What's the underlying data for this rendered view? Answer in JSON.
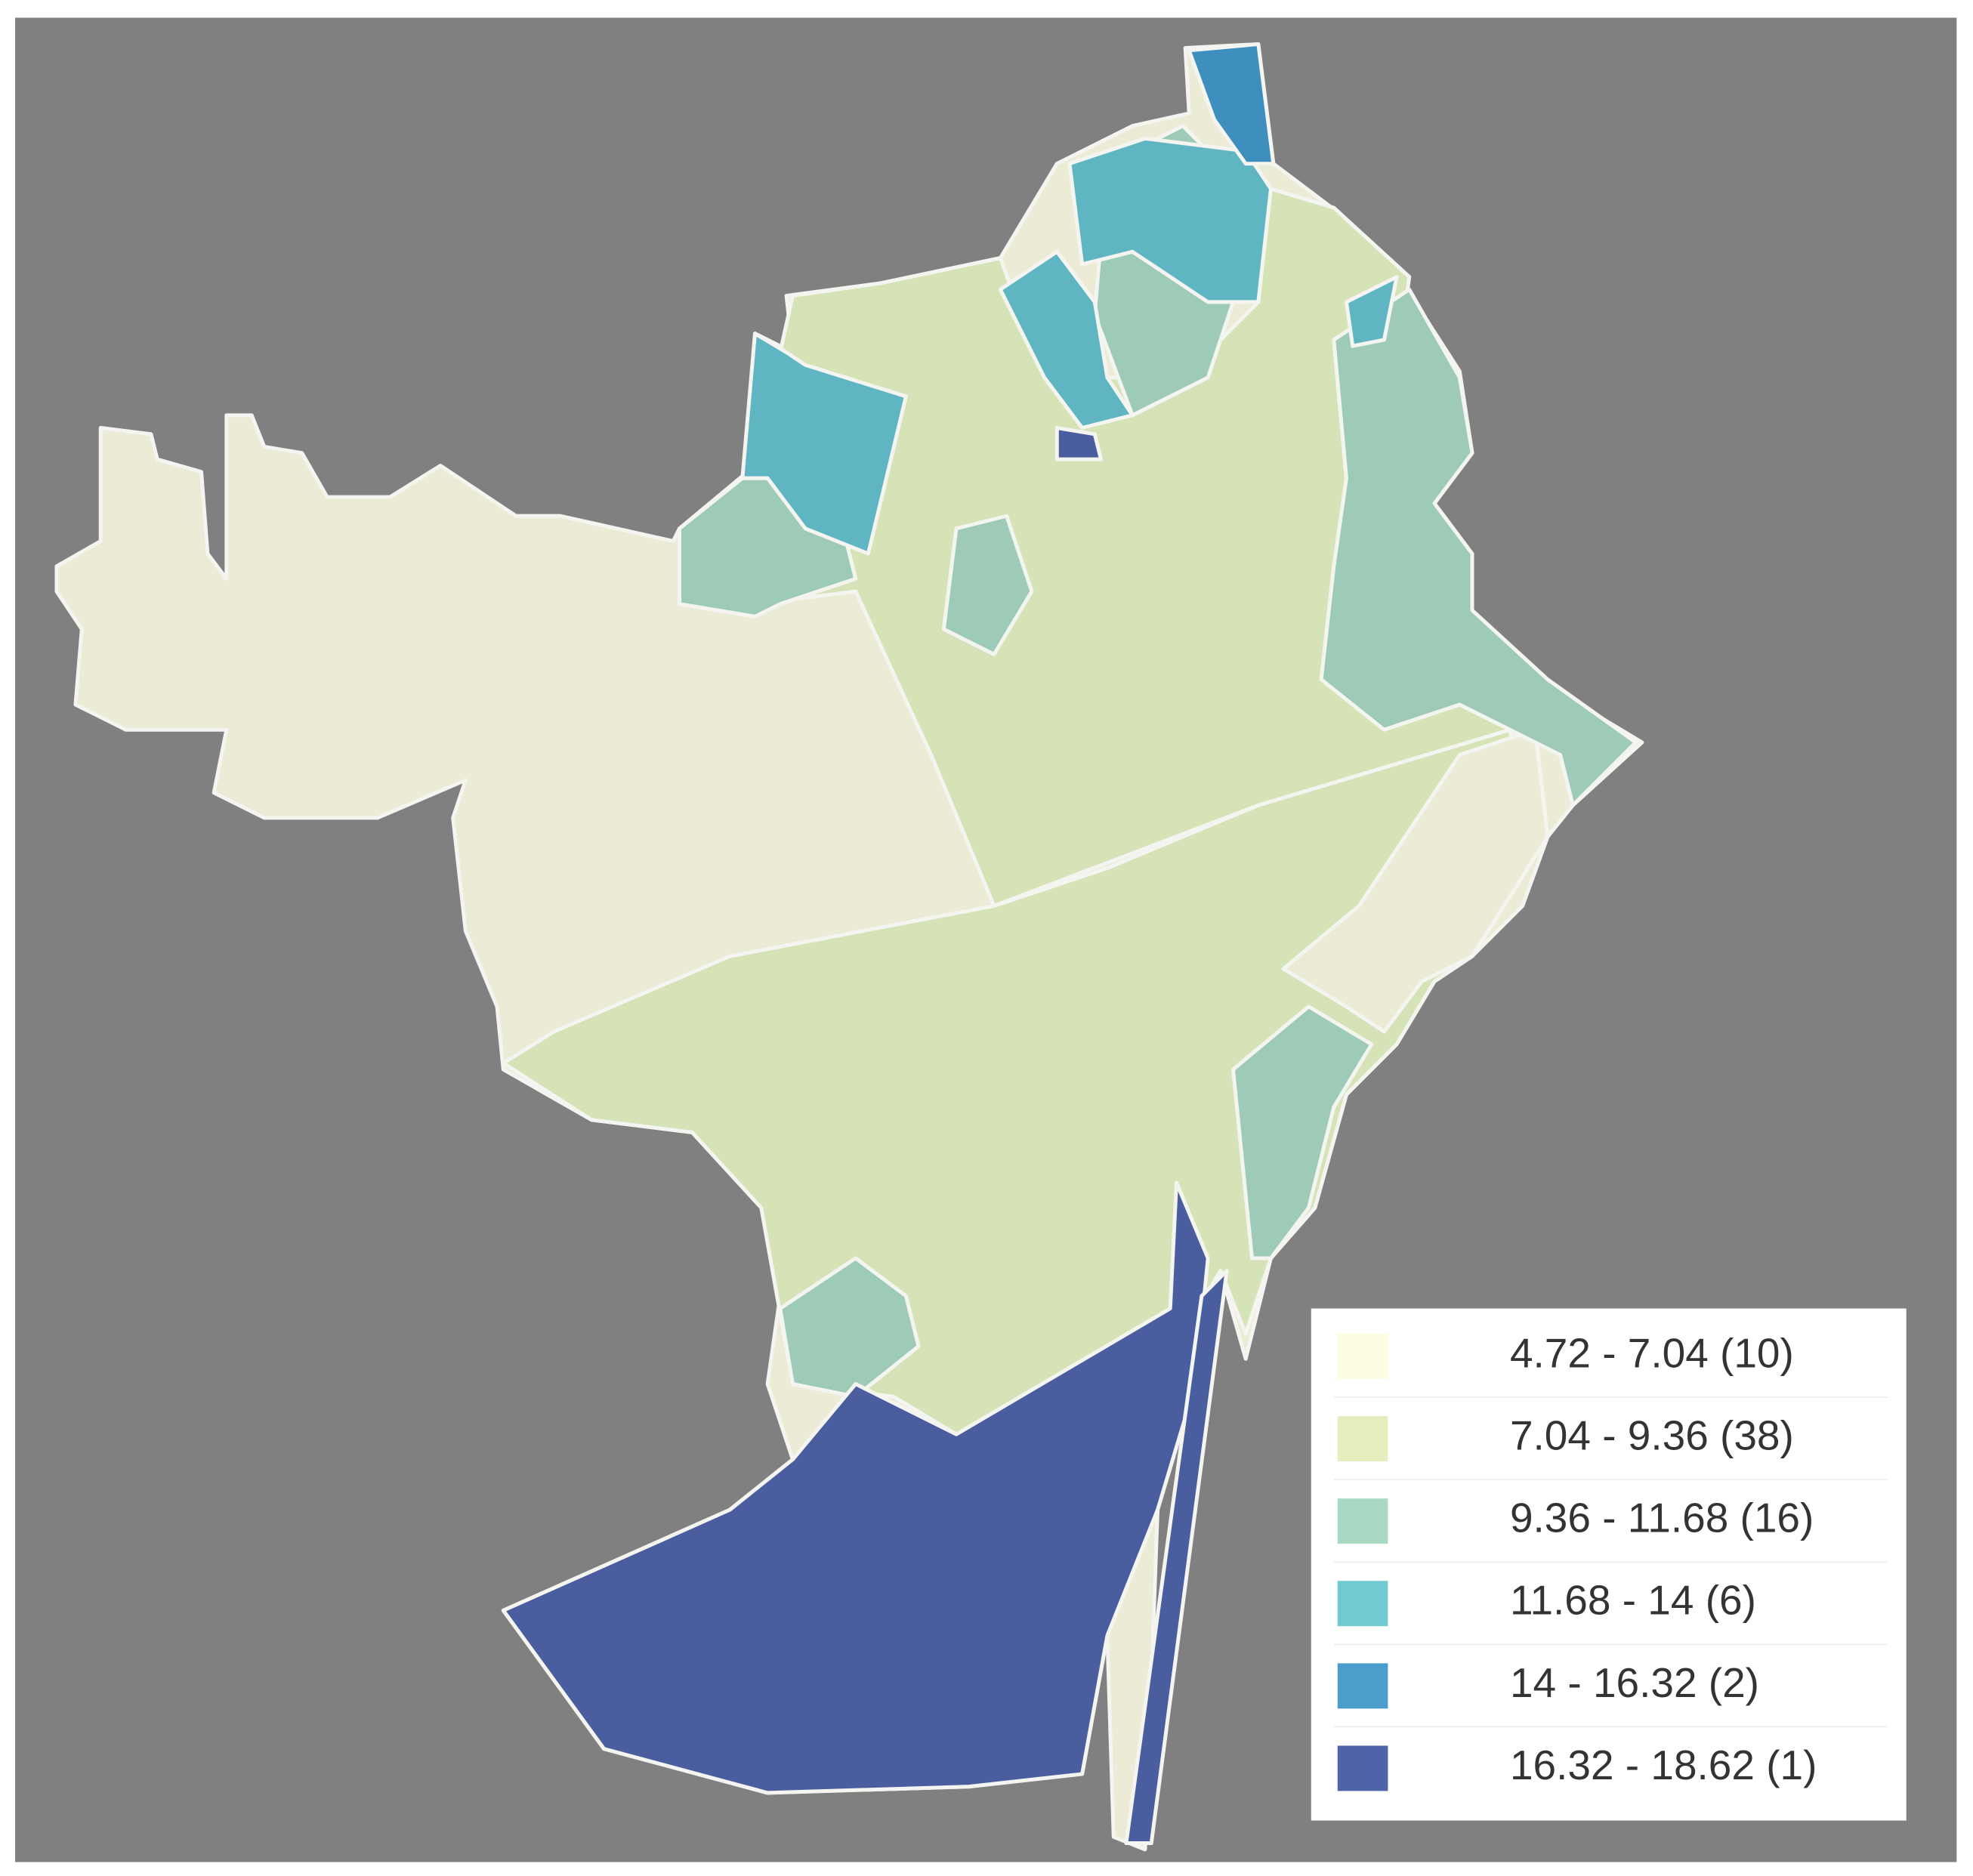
{
  "legend": {
    "items": [
      {
        "label": "4.72 - 7.04 (10)",
        "color": "#fdfde3"
      },
      {
        "label": "7.04 - 9.36 (38)",
        "color": "#e4edbc"
      },
      {
        "label": "9.36 - 11.68 (16)",
        "color": "#a9d9c3"
      },
      {
        "label": "11.68 - 14 (6)",
        "color": "#6fcad2"
      },
      {
        "label": "14 - 16.32 (2)",
        "color": "#4b9ecb"
      },
      {
        "label": "16.32 - 18.62 (1)",
        "color": "#4e63a8"
      }
    ]
  }
}
